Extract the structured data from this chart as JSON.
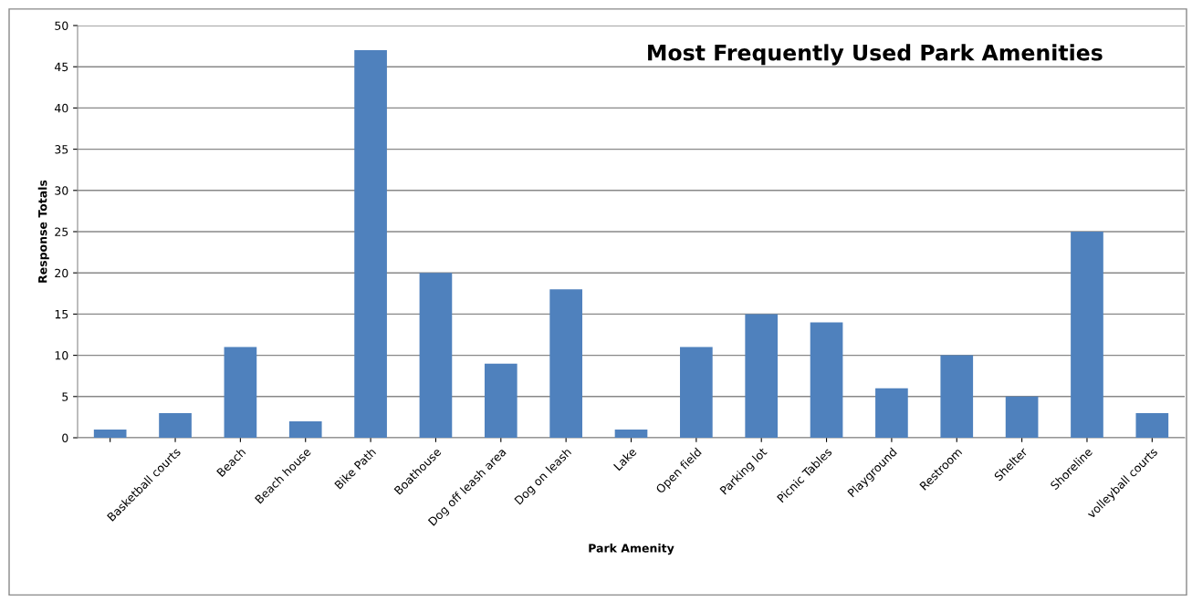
{
  "chart_data": {
    "type": "bar",
    "title": "Most Frequently Used Park Amenities",
    "xlabel": "Park Amenity",
    "ylabel": "Response Totals",
    "categories": [
      null,
      "Basketball courts",
      "Beach",
      "Beach house",
      "Bike Path",
      "Boathouse",
      "Dog off leash area",
      "Dog on leash",
      "Lake",
      "Open field",
      "Parking lot",
      "Picnic Tables",
      "Playground",
      "Restroom",
      "Shelter",
      "Shoreline",
      "volleyball courts"
    ],
    "values": [
      1,
      3,
      11,
      2,
      47,
      20,
      9,
      18,
      1,
      11,
      15,
      14,
      6,
      10,
      5,
      25,
      3
    ],
    "color": "#4f81bd",
    "ylim": [
      0,
      50
    ],
    "yticks": [
      0,
      5,
      10,
      15,
      20,
      25,
      30,
      35,
      40,
      45,
      50
    ],
    "grid": "y",
    "legend": false
  }
}
